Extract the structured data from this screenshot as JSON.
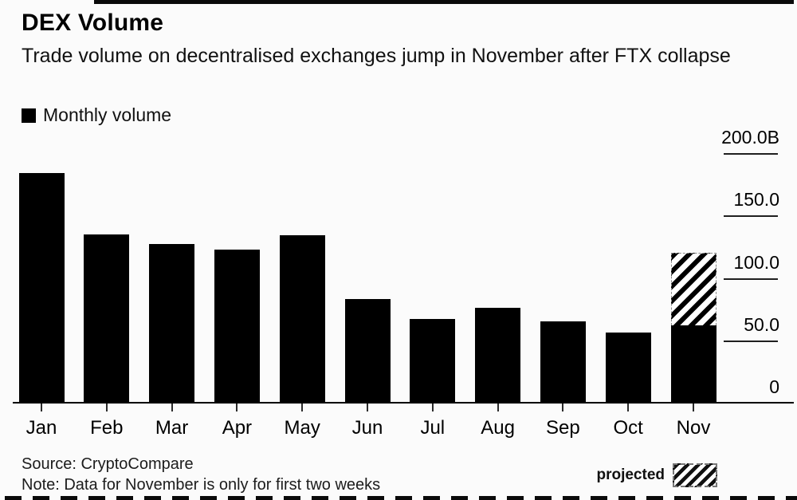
{
  "header": {
    "title": "DEX Volume",
    "subtitle": "Trade volume on decentralised exchanges jump in November after FTX collapse",
    "legend_label": "Monthly volume",
    "legend_color": "#000000"
  },
  "footer": {
    "source": "Source: CryptoCompare",
    "note": "Note: Data for November is only for first two weeks",
    "projected_label": "projected"
  },
  "chart_data": {
    "type": "bar",
    "stacked": true,
    "title": "DEX Volume",
    "subtitle": "Trade volume on decentralised exchanges jump in November after FTX collapse",
    "unit": "billions USD",
    "categories": [
      "Jan",
      "Feb",
      "Mar",
      "Apr",
      "May",
      "Jun",
      "Jul",
      "Aug",
      "Sep",
      "Oct",
      "Nov"
    ],
    "series": [
      {
        "name": "Monthly volume",
        "style": "solid",
        "color": "#000000",
        "values": [
          184,
          135,
          127,
          123,
          134,
          83,
          67,
          76,
          65,
          56,
          62
        ]
      },
      {
        "name": "projected",
        "style": "hatched",
        "color": "#000000",
        "values": [
          0,
          0,
          0,
          0,
          0,
          0,
          0,
          0,
          0,
          0,
          58
        ]
      }
    ],
    "ylim": [
      0,
      200
    ],
    "yticks": [
      {
        "value": 0,
        "label": "0"
      },
      {
        "value": 50,
        "label": "50.0"
      },
      {
        "value": 100,
        "label": "100.0"
      },
      {
        "value": 150,
        "label": "150.0"
      },
      {
        "value": 200,
        "label": "200.0B"
      }
    ],
    "y_axis_side": "right",
    "grid": false,
    "legend_position": "top-left"
  }
}
